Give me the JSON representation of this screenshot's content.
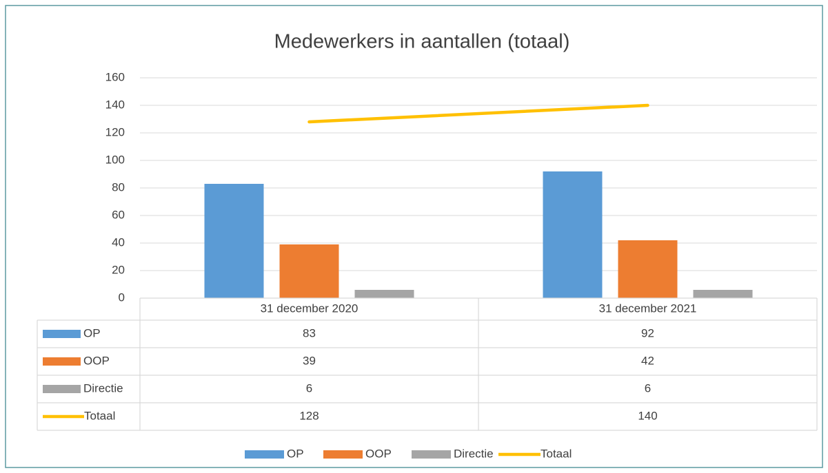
{
  "chart_data": {
    "type": "bar",
    "title": "Medewerkers in aantallen (totaal)",
    "categories": [
      "31 december 2020",
      "31 december 2021"
    ],
    "series": [
      {
        "name": "OP",
        "color": "#5b9bd5",
        "values": [
          83,
          92
        ]
      },
      {
        "name": "OOP",
        "color": "#ed7d31",
        "values": [
          39,
          42
        ]
      },
      {
        "name": "Directie",
        "color": "#a5a5a5",
        "values": [
          6,
          6
        ]
      },
      {
        "name": "Totaal",
        "color": "#ffc000",
        "type": "line",
        "values": [
          128,
          140
        ]
      }
    ],
    "ylim": [
      0,
      160
    ],
    "yticks": [
      0,
      20,
      40,
      60,
      80,
      100,
      120,
      140,
      160
    ],
    "grid": true,
    "legend": "bottom"
  }
}
